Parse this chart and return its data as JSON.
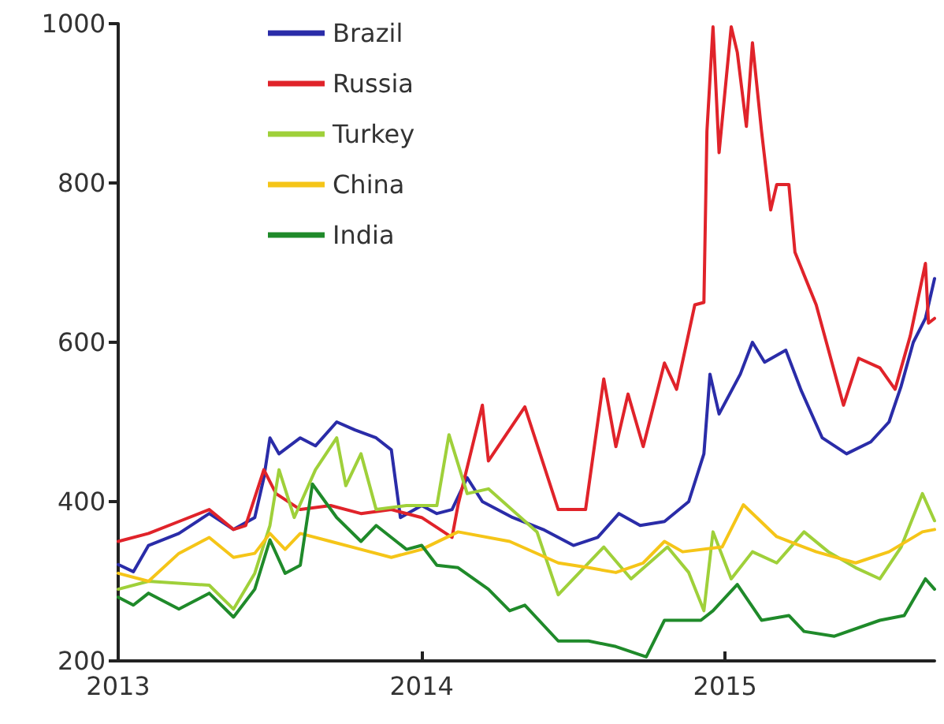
{
  "chart_data": {
    "type": "line",
    "xlim": [
      2013,
      2015.69
    ],
    "xticks": [
      2013,
      2014,
      2015
    ],
    "ylim": [
      200,
      1000
    ],
    "yticks": [
      200,
      400,
      600,
      800,
      1000
    ],
    "grid": false,
    "legend": "top left",
    "marker": "none",
    "line_style": "solid",
    "series": [
      {
        "name": "Brazil",
        "color": "#2a2ca8",
        "x": [
          2013.0,
          2013.05,
          2013.1,
          2013.2,
          2013.3,
          2013.38,
          2013.45,
          2013.48,
          2013.5,
          2013.53,
          2013.6,
          2013.65,
          2013.72,
          2013.78,
          2013.85,
          2013.9,
          2013.93,
          2014.0,
          2014.05,
          2014.1,
          2014.15,
          2014.2,
          2014.3,
          2014.4,
          2014.5,
          2014.58,
          2014.65,
          2014.72,
          2014.8,
          2014.88,
          2014.93,
          2014.95,
          2014.98,
          2015.05,
          2015.09,
          2015.13,
          2015.2,
          2015.25,
          2015.32,
          2015.4,
          2015.48,
          2015.54,
          2015.58,
          2015.62,
          2015.66,
          2015.69
        ],
        "values": [
          321,
          312,
          345,
          360,
          385,
          365,
          380,
          430,
          480,
          460,
          480,
          470,
          500,
          490,
          480,
          465,
          380,
          395,
          385,
          390,
          430,
          400,
          380,
          365,
          345,
          355,
          385,
          370,
          375,
          400,
          460,
          560,
          510,
          560,
          600,
          575,
          590,
          540,
          480,
          460,
          475,
          500,
          545,
          600,
          630,
          680
        ]
      },
      {
        "name": "Russia",
        "color": "#e0232a",
        "x": [
          2013.0,
          2013.1,
          2013.2,
          2013.3,
          2013.38,
          2013.42,
          2013.48,
          2013.52,
          2013.6,
          2013.7,
          2013.8,
          2013.9,
          2014.0,
          2014.1,
          2014.12,
          2014.2,
          2014.22,
          2014.34,
          2014.45,
          2014.54,
          2014.6,
          2014.64,
          2014.68,
          2014.73,
          2014.8,
          2014.84,
          2014.9,
          2014.93,
          2014.94,
          2014.96,
          2014.98,
          2015.02,
          2015.04,
          2015.07,
          2015.09,
          2015.12,
          2015.15,
          2015.17,
          2015.21,
          2015.23,
          2015.3,
          2015.39,
          2015.44,
          2015.51,
          2015.56,
          2015.61,
          2015.66,
          2015.67,
          2015.69
        ],
        "values": [
          350,
          360,
          375,
          390,
          365,
          370,
          440,
          410,
          390,
          395,
          385,
          390,
          380,
          355,
          396,
          521,
          451,
          519,
          390,
          390,
          554,
          469,
          535,
          469,
          574,
          541,
          647,
          650,
          865,
          996,
          838,
          996,
          964,
          871,
          976,
          865,
          766,
          798,
          798,
          713,
          647,
          521,
          580,
          568,
          541,
          608,
          699,
          624,
          630
        ]
      },
      {
        "name": "Turkey",
        "color": "#9fd03a",
        "x": [
          2013.0,
          2013.1,
          2013.3,
          2013.38,
          2013.45,
          2013.5,
          2013.53,
          2013.58,
          2013.65,
          2013.72,
          2013.75,
          2013.8,
          2013.85,
          2013.95,
          2014.05,
          2014.09,
          2014.15,
          2014.22,
          2014.38,
          2014.45,
          2014.52,
          2014.6,
          2014.69,
          2014.81,
          2014.88,
          2014.93,
          2014.96,
          2015.02,
          2015.09,
          2015.17,
          2015.26,
          2015.34,
          2015.43,
          2015.51,
          2015.58,
          2015.65,
          2015.69
        ],
        "values": [
          290,
          300,
          295,
          265,
          310,
          370,
          440,
          380,
          440,
          480,
          420,
          460,
          390,
          395,
          395,
          484,
          410,
          416,
          362,
          283,
          311,
          343,
          303,
          343,
          311,
          263,
          362,
          303,
          337,
          323,
          362,
          337,
          317,
          303,
          343,
          410,
          376
        ]
      },
      {
        "name": "China",
        "color": "#f5c518",
        "x": [
          2013.0,
          2013.1,
          2013.2,
          2013.3,
          2013.38,
          2013.45,
          2013.5,
          2013.55,
          2013.6,
          2013.7,
          2013.8,
          2013.9,
          2014.0,
          2014.12,
          2014.29,
          2014.45,
          2014.55,
          2014.64,
          2014.73,
          2014.8,
          2014.86,
          2014.99,
          2015.06,
          2015.17,
          2015.3,
          2015.43,
          2015.54,
          2015.65,
          2015.69
        ],
        "values": [
          310,
          300,
          335,
          355,
          330,
          335,
          360,
          340,
          360,
          350,
          340,
          330,
          340,
          362,
          350,
          323,
          317,
          311,
          323,
          350,
          337,
          343,
          396,
          356,
          337,
          323,
          337,
          362,
          365
        ]
      },
      {
        "name": "India",
        "color": "#1f8a2a",
        "x": [
          2013.0,
          2013.05,
          2013.1,
          2013.2,
          2013.3,
          2013.38,
          2013.45,
          2013.5,
          2013.55,
          2013.6,
          2013.64,
          2013.72,
          2013.8,
          2013.85,
          2013.95,
          2014.0,
          2014.05,
          2014.12,
          2014.22,
          2014.29,
          2014.34,
          2014.45,
          2014.55,
          2014.64,
          2014.74,
          2014.8,
          2014.92,
          2014.96,
          2015.04,
          2015.12,
          2015.21,
          2015.26,
          2015.36,
          2015.51,
          2015.59,
          2015.66,
          2015.69
        ],
        "values": [
          280,
          270,
          285,
          265,
          285,
          255,
          290,
          352,
          310,
          320,
          422,
          380,
          350,
          370,
          340,
          345,
          320,
          317,
          290,
          263,
          270,
          225,
          225,
          218,
          205,
          251,
          251,
          263,
          296,
          251,
          257,
          237,
          231,
          251,
          257,
          303,
          290
        ]
      }
    ]
  }
}
